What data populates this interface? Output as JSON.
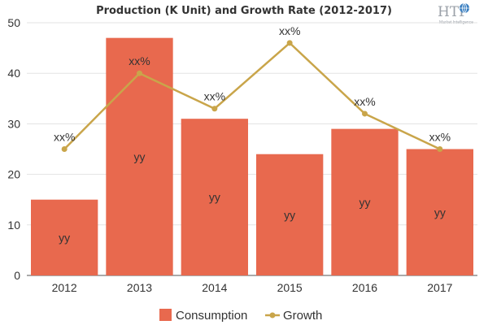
{
  "chart_data": {
    "type": "bar",
    "title": "Production (K Unit) and Growth Rate (2012-2017)",
    "xlabel": "",
    "ylabel": "",
    "categories": [
      "2012",
      "2013",
      "2014",
      "2015",
      "2016",
      "2017"
    ],
    "ylim": [
      0,
      50
    ],
    "yticks": [
      0,
      10,
      20,
      30,
      40,
      50
    ],
    "grid": true,
    "legend": "bottom",
    "series": [
      {
        "name": "Consumption",
        "type": "bar",
        "color": "#e8694e",
        "values": [
          15,
          47,
          31,
          24,
          29,
          25
        ],
        "labels": [
          "yy",
          "yy",
          "yy",
          "yy",
          "yy",
          "yy"
        ]
      },
      {
        "name": "Growth",
        "type": "line",
        "color": "#c9a54a",
        "values": [
          25,
          40,
          33,
          46,
          32,
          25
        ],
        "labels": [
          "xx%",
          "xx%",
          "xx%",
          "xx%",
          "xx%",
          "xx%"
        ]
      }
    ]
  },
  "logo": {
    "text": "HTF",
    "subtext": "Market Intelligence",
    "icon": "globe-icon"
  }
}
